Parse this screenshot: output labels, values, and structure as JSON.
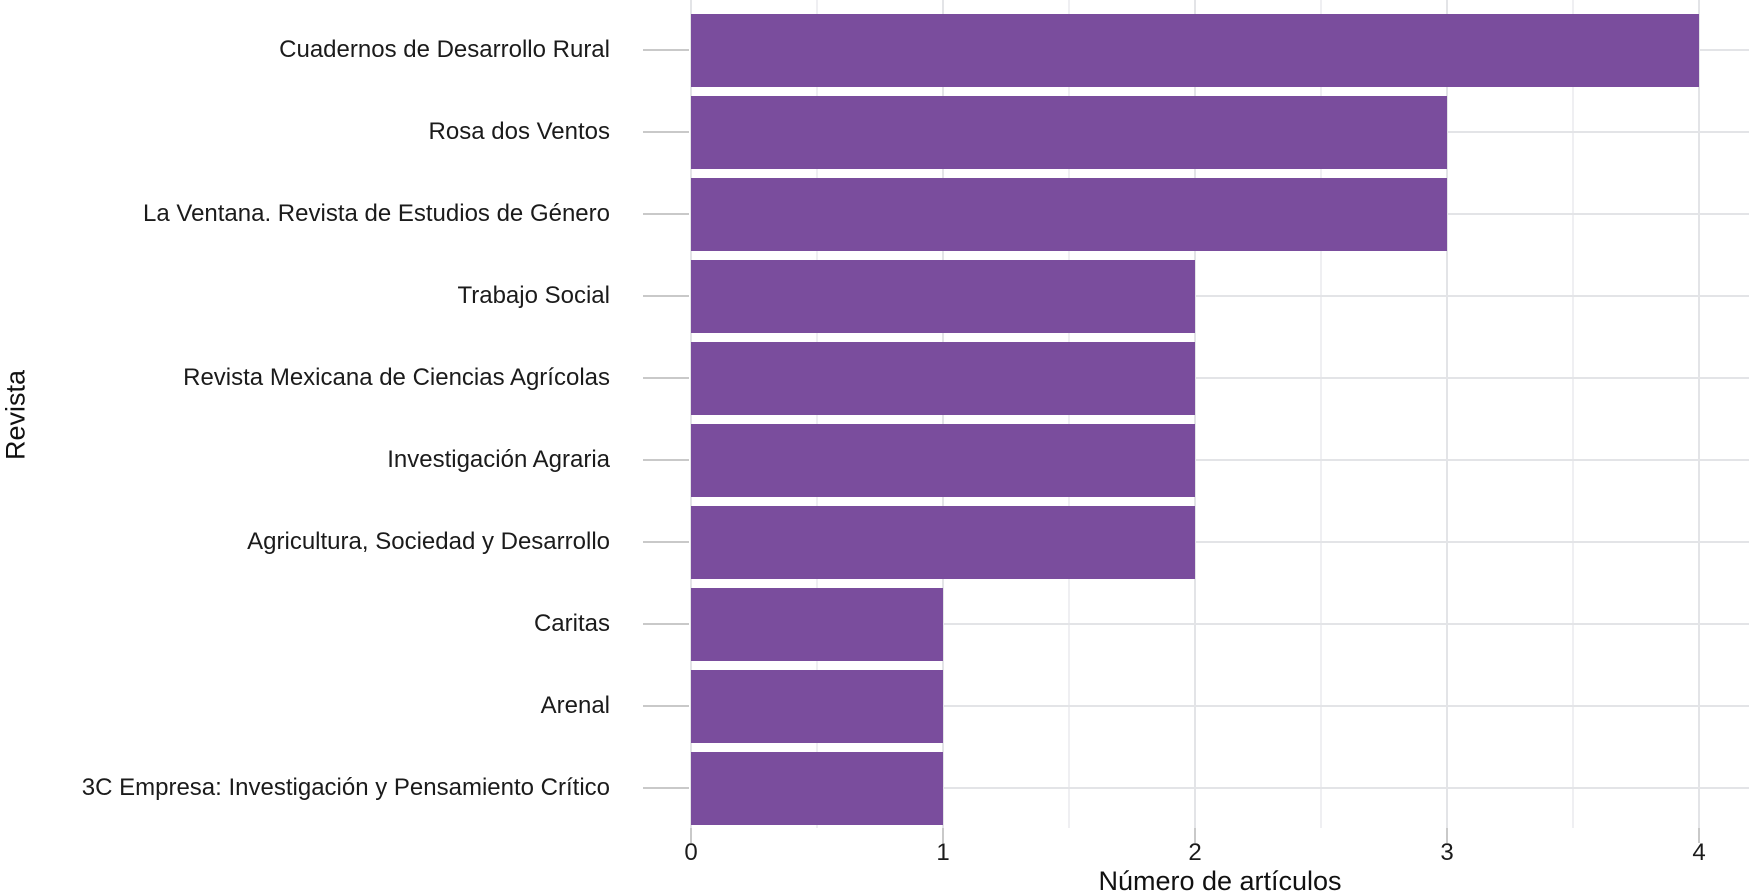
{
  "chart_data": {
    "type": "bar",
    "orientation": "horizontal",
    "title": "",
    "xlabel": "Número de artículos",
    "ylabel": "Revista",
    "categories": [
      "Cuadernos de Desarrollo Rural",
      "Rosa dos Ventos",
      "La Ventana. Revista de Estudios de Género",
      "Trabajo Social",
      "Revista Mexicana de Ciencias Agrícolas",
      "Investigación Agraria",
      "Agricultura, Sociedad y Desarrollo",
      "Caritas",
      "Arenal",
      "3C Empresa: Investigación y Pensamiento Crítico"
    ],
    "values": [
      4,
      3,
      3,
      2,
      2,
      2,
      2,
      1,
      1,
      1
    ],
    "x_ticks": [
      0,
      1,
      2,
      3,
      4
    ],
    "x_minor_ticks": [
      0.5,
      1.5,
      2.5,
      3.5
    ],
    "xlim": [
      0,
      4.2
    ],
    "grid": "major+minor",
    "legend": "none",
    "bar_color": "#7a4d9d",
    "grid_major_color": "#e3e4e7",
    "grid_minor_color": "#efeff2",
    "tick_color": "#c9c9c9",
    "text_color": "#1b1b1b",
    "background": "#ffffff"
  }
}
